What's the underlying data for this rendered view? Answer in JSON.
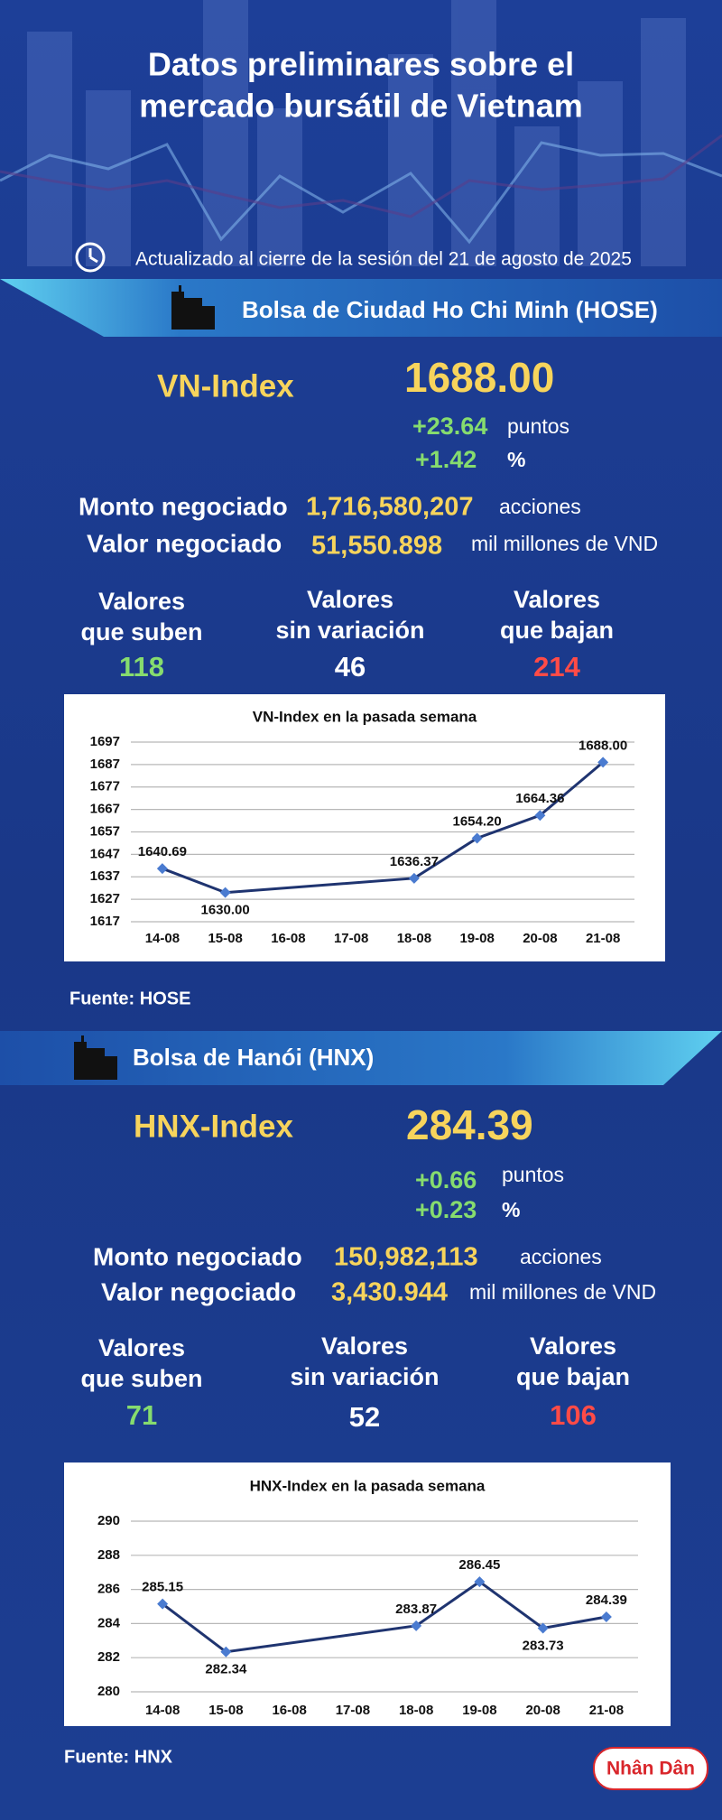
{
  "header": {
    "title": [
      "Datos preliminares sobre el",
      "mercado bursátil de Vietnam"
    ],
    "updated": "Actualizado al cierre de la sesión del 21 de agosto de 2025"
  },
  "sections": [
    {
      "exchange": "Bolsa de Ciudad Ho Chi Minh (HOSE)",
      "index_name": "VN-Index",
      "index_value": "1688.00",
      "change_points": "+23.64",
      "points_unit": "puntos",
      "change_percent": "+1.42",
      "percent_unit": "%",
      "volume_label": "Monto negociado",
      "volume": "1,716,580,207",
      "volume_unit": "acciones",
      "value_label": "Valor negociado",
      "value": "51,550.898",
      "value_unit": "mil millones de VND",
      "advancers_label": [
        "Valores",
        "que suben"
      ],
      "advancers": "118",
      "unchanged_label": [
        "Valores",
        "sin variación"
      ],
      "unchanged": "46",
      "decliners_label": [
        "Valores",
        "que bajan"
      ],
      "decliners": "214",
      "source": "Fuente: HOSE"
    },
    {
      "exchange": "Bolsa de Hanói (HNX)",
      "index_name": "HNX-Index",
      "index_value": "284.39",
      "change_points": "+0.66",
      "points_unit": "puntos",
      "change_percent": "+0.23",
      "percent_unit": "%",
      "volume_label": "Monto negociado",
      "volume": "150,982,113",
      "volume_unit": "acciones",
      "value_label": "Valor negociado",
      "value": "3,430.944",
      "value_unit": "mil millones de VND",
      "advancers_label": [
        "Valores",
        "que suben"
      ],
      "advancers": "71",
      "unchanged_label": [
        "Valores",
        "sin variación"
      ],
      "unchanged": "52",
      "decliners_label": [
        "Valores",
        "que bajan"
      ],
      "decliners": "106",
      "source": "Fuente: HNX"
    }
  ],
  "chart_data": [
    {
      "type": "line",
      "title": "VN-Index en la pasada semana",
      "categories": [
        "14-08",
        "15-08",
        "16-08",
        "17-08",
        "18-08",
        "19-08",
        "20-08",
        "21-08"
      ],
      "x": [
        "14-08",
        "15-08",
        "18-08",
        "19-08",
        "20-08",
        "21-08"
      ],
      "values": [
        1640.69,
        1630.0,
        1636.37,
        1654.2,
        1664.36,
        1688.0
      ],
      "value_labels": [
        "1640.69",
        "1630.00",
        "1636.37",
        "1654.20",
        "1664.36",
        "1688.00"
      ],
      "color": "#1f3470",
      "marker_color": "#4a7bd0",
      "ylim": [
        1617,
        1697
      ],
      "yticks": [
        1617,
        1627,
        1637,
        1647,
        1657,
        1667,
        1677,
        1687,
        1697
      ],
      "grid": true
    },
    {
      "type": "line",
      "title": "HNX-Index en la pasada semana",
      "categories": [
        "14-08",
        "15-08",
        "16-08",
        "17-08",
        "18-08",
        "19-08",
        "20-08",
        "21-08"
      ],
      "x": [
        "14-08",
        "15-08",
        "18-08",
        "19-08",
        "20-08",
        "21-08"
      ],
      "values": [
        285.15,
        282.34,
        283.87,
        286.45,
        283.73,
        284.39
      ],
      "color": "#1f3470",
      "marker_color": "#4a7bd0",
      "ylim": [
        280,
        290
      ],
      "yticks": [
        280,
        282,
        284,
        286,
        288,
        290
      ],
      "grid": true
    }
  ],
  "logo": "Nhân Dân"
}
